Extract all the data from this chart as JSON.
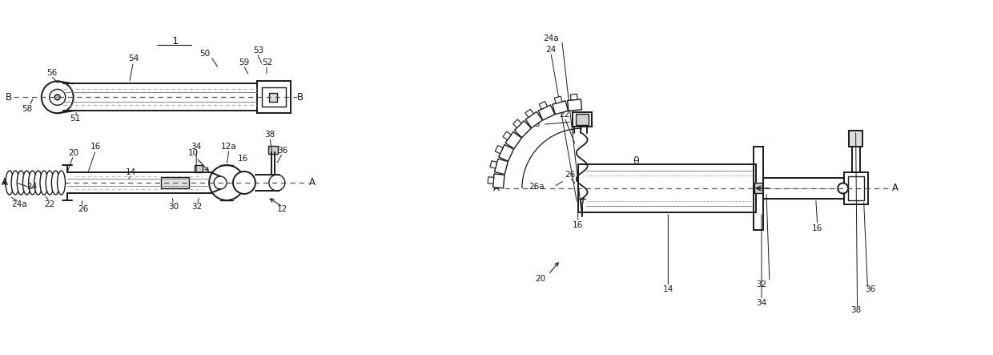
{
  "bg_color": "#ffffff",
  "line_color": "#1a1a1a",
  "label_color": "#1a1a1a",
  "figsize": [
    12.4,
    4.43
  ],
  "dpi": 100,
  "xlim": [
    0,
    12.4
  ],
  "ylim": [
    0,
    4.43
  ]
}
